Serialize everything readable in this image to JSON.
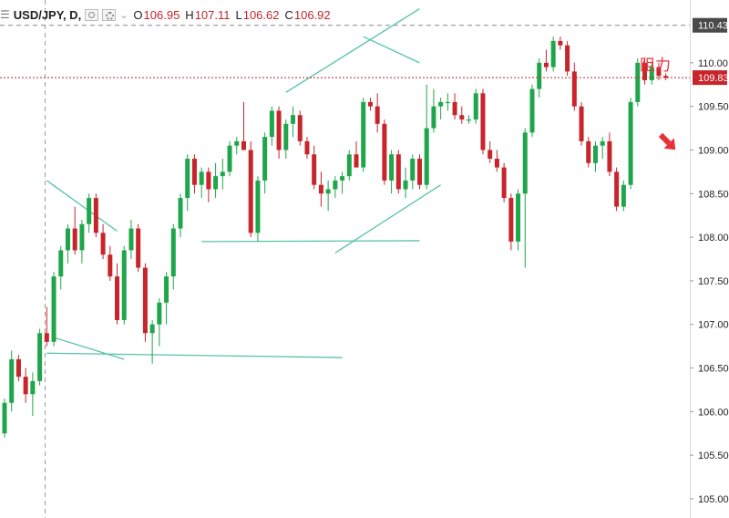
{
  "header": {
    "menu_icon": "legend-menu-icon",
    "symbol": "USD/JPY, D,",
    "o_label": "O",
    "o_value": "106.95",
    "h_label": "H",
    "h_value": "107.11",
    "l_label": "L",
    "l_value": "106.62",
    "c_label": "C",
    "c_value": "106.92"
  },
  "colors": {
    "up": "#1fa64a",
    "down": "#c8242c",
    "trendline": "#57c3a7",
    "price_line": "#c8242c",
    "axis_text": "#222222",
    "annotation": "#e8303a"
  },
  "chart_data": {
    "type": "candlestick",
    "y_axis": {
      "ticks": [
        "110.00",
        "109.50",
        "109.00",
        "108.50",
        "108.00",
        "107.50",
        "107.00",
        "106.50",
        "106.00",
        "105.50",
        "105.00"
      ],
      "range": [
        104.78,
        110.72
      ]
    },
    "last_price": "109.83",
    "marked_level": "110.43",
    "annotation": "阻力",
    "candles": [
      [
        105.75,
        106.15,
        105.7,
        106.1
      ],
      [
        106.1,
        106.7,
        106.0,
        106.6
      ],
      [
        106.6,
        106.65,
        106.35,
        106.4
      ],
      [
        106.4,
        106.5,
        106.1,
        106.2
      ],
      [
        106.2,
        106.45,
        105.95,
        106.35
      ],
      [
        106.35,
        106.95,
        106.3,
        106.9
      ],
      [
        106.9,
        107.2,
        106.75,
        106.8
      ],
      [
        106.8,
        107.6,
        106.75,
        107.55
      ],
      [
        107.55,
        107.9,
        107.4,
        107.85
      ],
      [
        107.85,
        108.15,
        107.7,
        108.1
      ],
      [
        108.1,
        108.35,
        107.8,
        107.85
      ],
      [
        107.85,
        108.2,
        107.7,
        108.15
      ],
      [
        108.15,
        108.5,
        108.05,
        108.45
      ],
      [
        108.45,
        108.5,
        108.0,
        108.05
      ],
      [
        108.05,
        108.15,
        107.75,
        107.8
      ],
      [
        107.8,
        107.9,
        107.5,
        107.55
      ],
      [
        107.55,
        107.7,
        107.0,
        107.05
      ],
      [
        107.05,
        107.9,
        107.0,
        107.85
      ],
      [
        107.85,
        108.2,
        107.75,
        108.1
      ],
      [
        108.1,
        108.15,
        107.6,
        107.65
      ],
      [
        107.65,
        107.7,
        106.8,
        106.9
      ],
      [
        106.9,
        107.05,
        106.55,
        107.0
      ],
      [
        107.0,
        107.3,
        106.75,
        107.25
      ],
      [
        107.25,
        107.6,
        107.0,
        107.55
      ],
      [
        107.55,
        108.15,
        107.4,
        108.1
      ],
      [
        108.1,
        108.5,
        108.0,
        108.45
      ],
      [
        108.45,
        108.95,
        108.3,
        108.9
      ],
      [
        108.9,
        108.95,
        108.5,
        108.6
      ],
      [
        108.6,
        108.8,
        108.45,
        108.75
      ],
      [
        108.75,
        108.8,
        108.4,
        108.55
      ],
      [
        108.55,
        108.85,
        108.45,
        108.7
      ],
      [
        108.7,
        108.9,
        108.55,
        108.75
      ],
      [
        108.75,
        109.1,
        108.7,
        109.05
      ],
      [
        109.05,
        109.15,
        108.95,
        109.1
      ],
      [
        109.1,
        109.55,
        109.0,
        109.0
      ],
      [
        109.0,
        109.1,
        108.0,
        108.05
      ],
      [
        108.05,
        108.7,
        107.95,
        108.65
      ],
      [
        108.65,
        109.2,
        108.5,
        109.15
      ],
      [
        109.15,
        109.5,
        109.05,
        109.45
      ],
      [
        109.45,
        109.5,
        108.9,
        109.0
      ],
      [
        109.0,
        109.35,
        108.9,
        109.3
      ],
      [
        109.3,
        109.5,
        109.15,
        109.4
      ],
      [
        109.4,
        109.45,
        109.05,
        109.1
      ],
      [
        109.1,
        109.15,
        108.9,
        108.95
      ],
      [
        108.95,
        109.05,
        108.55,
        108.6
      ],
      [
        108.6,
        108.75,
        108.35,
        108.5
      ],
      [
        108.5,
        108.65,
        108.3,
        108.55
      ],
      [
        108.55,
        108.7,
        108.45,
        108.65
      ],
      [
        108.65,
        108.75,
        108.5,
        108.7
      ],
      [
        108.7,
        109.0,
        108.65,
        108.95
      ],
      [
        108.95,
        109.1,
        108.8,
        108.8
      ],
      [
        108.8,
        109.6,
        108.75,
        109.55
      ],
      [
        109.55,
        109.6,
        109.45,
        109.5
      ],
      [
        109.5,
        109.65,
        109.2,
        109.3
      ],
      [
        109.3,
        109.35,
        108.6,
        108.65
      ],
      [
        108.65,
        109.0,
        108.5,
        108.95
      ],
      [
        108.95,
        109.0,
        108.5,
        108.55
      ],
      [
        108.55,
        108.8,
        108.45,
        108.65
      ],
      [
        108.65,
        108.95,
        108.55,
        108.9
      ],
      [
        108.9,
        108.95,
        108.55,
        108.6
      ],
      [
        108.6,
        109.75,
        108.55,
        109.25
      ],
      [
        109.25,
        109.7,
        109.2,
        109.5
      ],
      [
        109.5,
        109.6,
        109.35,
        109.55
      ],
      [
        109.55,
        109.65,
        109.45,
        109.55
      ],
      [
        109.55,
        109.65,
        109.35,
        109.4
      ],
      [
        109.4,
        109.5,
        109.3,
        109.35
      ],
      [
        109.35,
        109.4,
        109.3,
        109.35
      ],
      [
        109.35,
        109.7,
        109.3,
        109.65
      ],
      [
        109.65,
        109.7,
        108.95,
        109.0
      ],
      [
        109.0,
        109.1,
        108.85,
        108.9
      ],
      [
        108.9,
        109.0,
        108.75,
        108.8
      ],
      [
        108.8,
        108.85,
        108.4,
        108.45
      ],
      [
        108.45,
        108.5,
        107.85,
        107.95
      ],
      [
        107.95,
        108.55,
        107.85,
        108.5
      ],
      [
        108.5,
        109.25,
        107.65,
        109.2
      ],
      [
        109.2,
        109.75,
        109.15,
        109.7
      ],
      [
        109.7,
        110.05,
        109.6,
        110.0
      ],
      [
        110.0,
        110.15,
        109.9,
        109.95
      ],
      [
        109.95,
        110.3,
        109.9,
        110.25
      ],
      [
        110.25,
        110.3,
        110.15,
        110.2
      ],
      [
        110.2,
        110.25,
        109.85,
        109.9
      ],
      [
        109.9,
        110.0,
        109.45,
        109.5
      ],
      [
        109.5,
        109.55,
        109.05,
        109.1
      ],
      [
        109.1,
        109.15,
        108.8,
        108.85
      ],
      [
        108.85,
        109.1,
        108.75,
        109.05
      ],
      [
        109.05,
        109.15,
        108.9,
        109.1
      ],
      [
        109.1,
        109.2,
        108.7,
        108.75
      ],
      [
        108.75,
        108.8,
        108.3,
        108.35
      ],
      [
        108.35,
        108.65,
        108.3,
        108.6
      ],
      [
        108.6,
        109.6,
        108.55,
        109.55
      ],
      [
        109.55,
        110.05,
        109.5,
        110.0
      ],
      [
        110.0,
        110.05,
        109.75,
        109.8
      ],
      [
        109.8,
        110.0,
        109.75,
        109.95
      ],
      [
        109.95,
        110.0,
        109.8,
        109.85
      ],
      [
        109.85,
        109.88,
        109.8,
        109.83
      ]
    ],
    "trendlines": [
      {
        "from": [
          7,
          106.85
        ],
        "to": [
          17,
          106.6
        ]
      },
      {
        "from": [
          6,
          106.67
        ],
        "to": [
          48,
          106.62
        ]
      },
      {
        "from": [
          6,
          108.65
        ],
        "to": [
          16,
          108.07
        ]
      },
      {
        "from": [
          28,
          107.95
        ],
        "to": [
          59,
          107.96
        ]
      },
      {
        "from": [
          40,
          109.66
        ],
        "to": [
          59,
          110.62
        ]
      },
      {
        "from": [
          51,
          110.3
        ],
        "to": [
          59,
          110.0
        ]
      },
      {
        "from": [
          47,
          107.82
        ],
        "to": [
          62,
          108.6
        ]
      }
    ]
  }
}
